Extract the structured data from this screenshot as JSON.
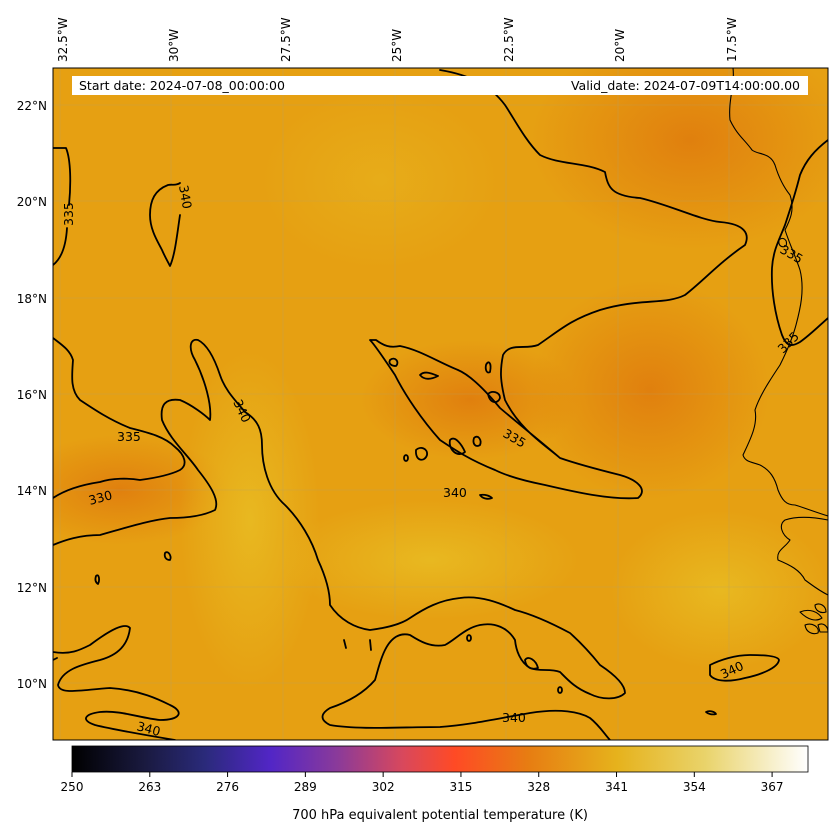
{
  "map": {
    "start_date": "Start date: 2024-07-08_00:00:00",
    "valid_date": "Valid_date: 2024-07-09T14:00:00.00",
    "lon_labels": [
      "32.5°W",
      "30°W",
      "27.5°W",
      "25°W",
      "22.5°W",
      "20°W",
      "17.5°W"
    ],
    "lat_labels": [
      "22°N",
      "20°N",
      "18°N",
      "16°N",
      "14°N",
      "12°N",
      "10°N"
    ],
    "contour_labels": [
      "335",
      "340",
      "340",
      "335",
      "330",
      "340",
      "335",
      "340",
      "335",
      "335",
      "340",
      "340"
    ]
  },
  "colorbar": {
    "title": "700 hPa equivalent potential temperature (K)",
    "ticks": [
      "250",
      "263",
      "276",
      "289",
      "302",
      "315",
      "328",
      "341",
      "354",
      "367"
    ],
    "vmin": 250,
    "vmax": 373,
    "colormap": "CMRmap"
  },
  "colors": {
    "field_base": "#e6a012",
    "field_warm": "#e28a0c",
    "field_cool": "#e5b31c"
  }
}
